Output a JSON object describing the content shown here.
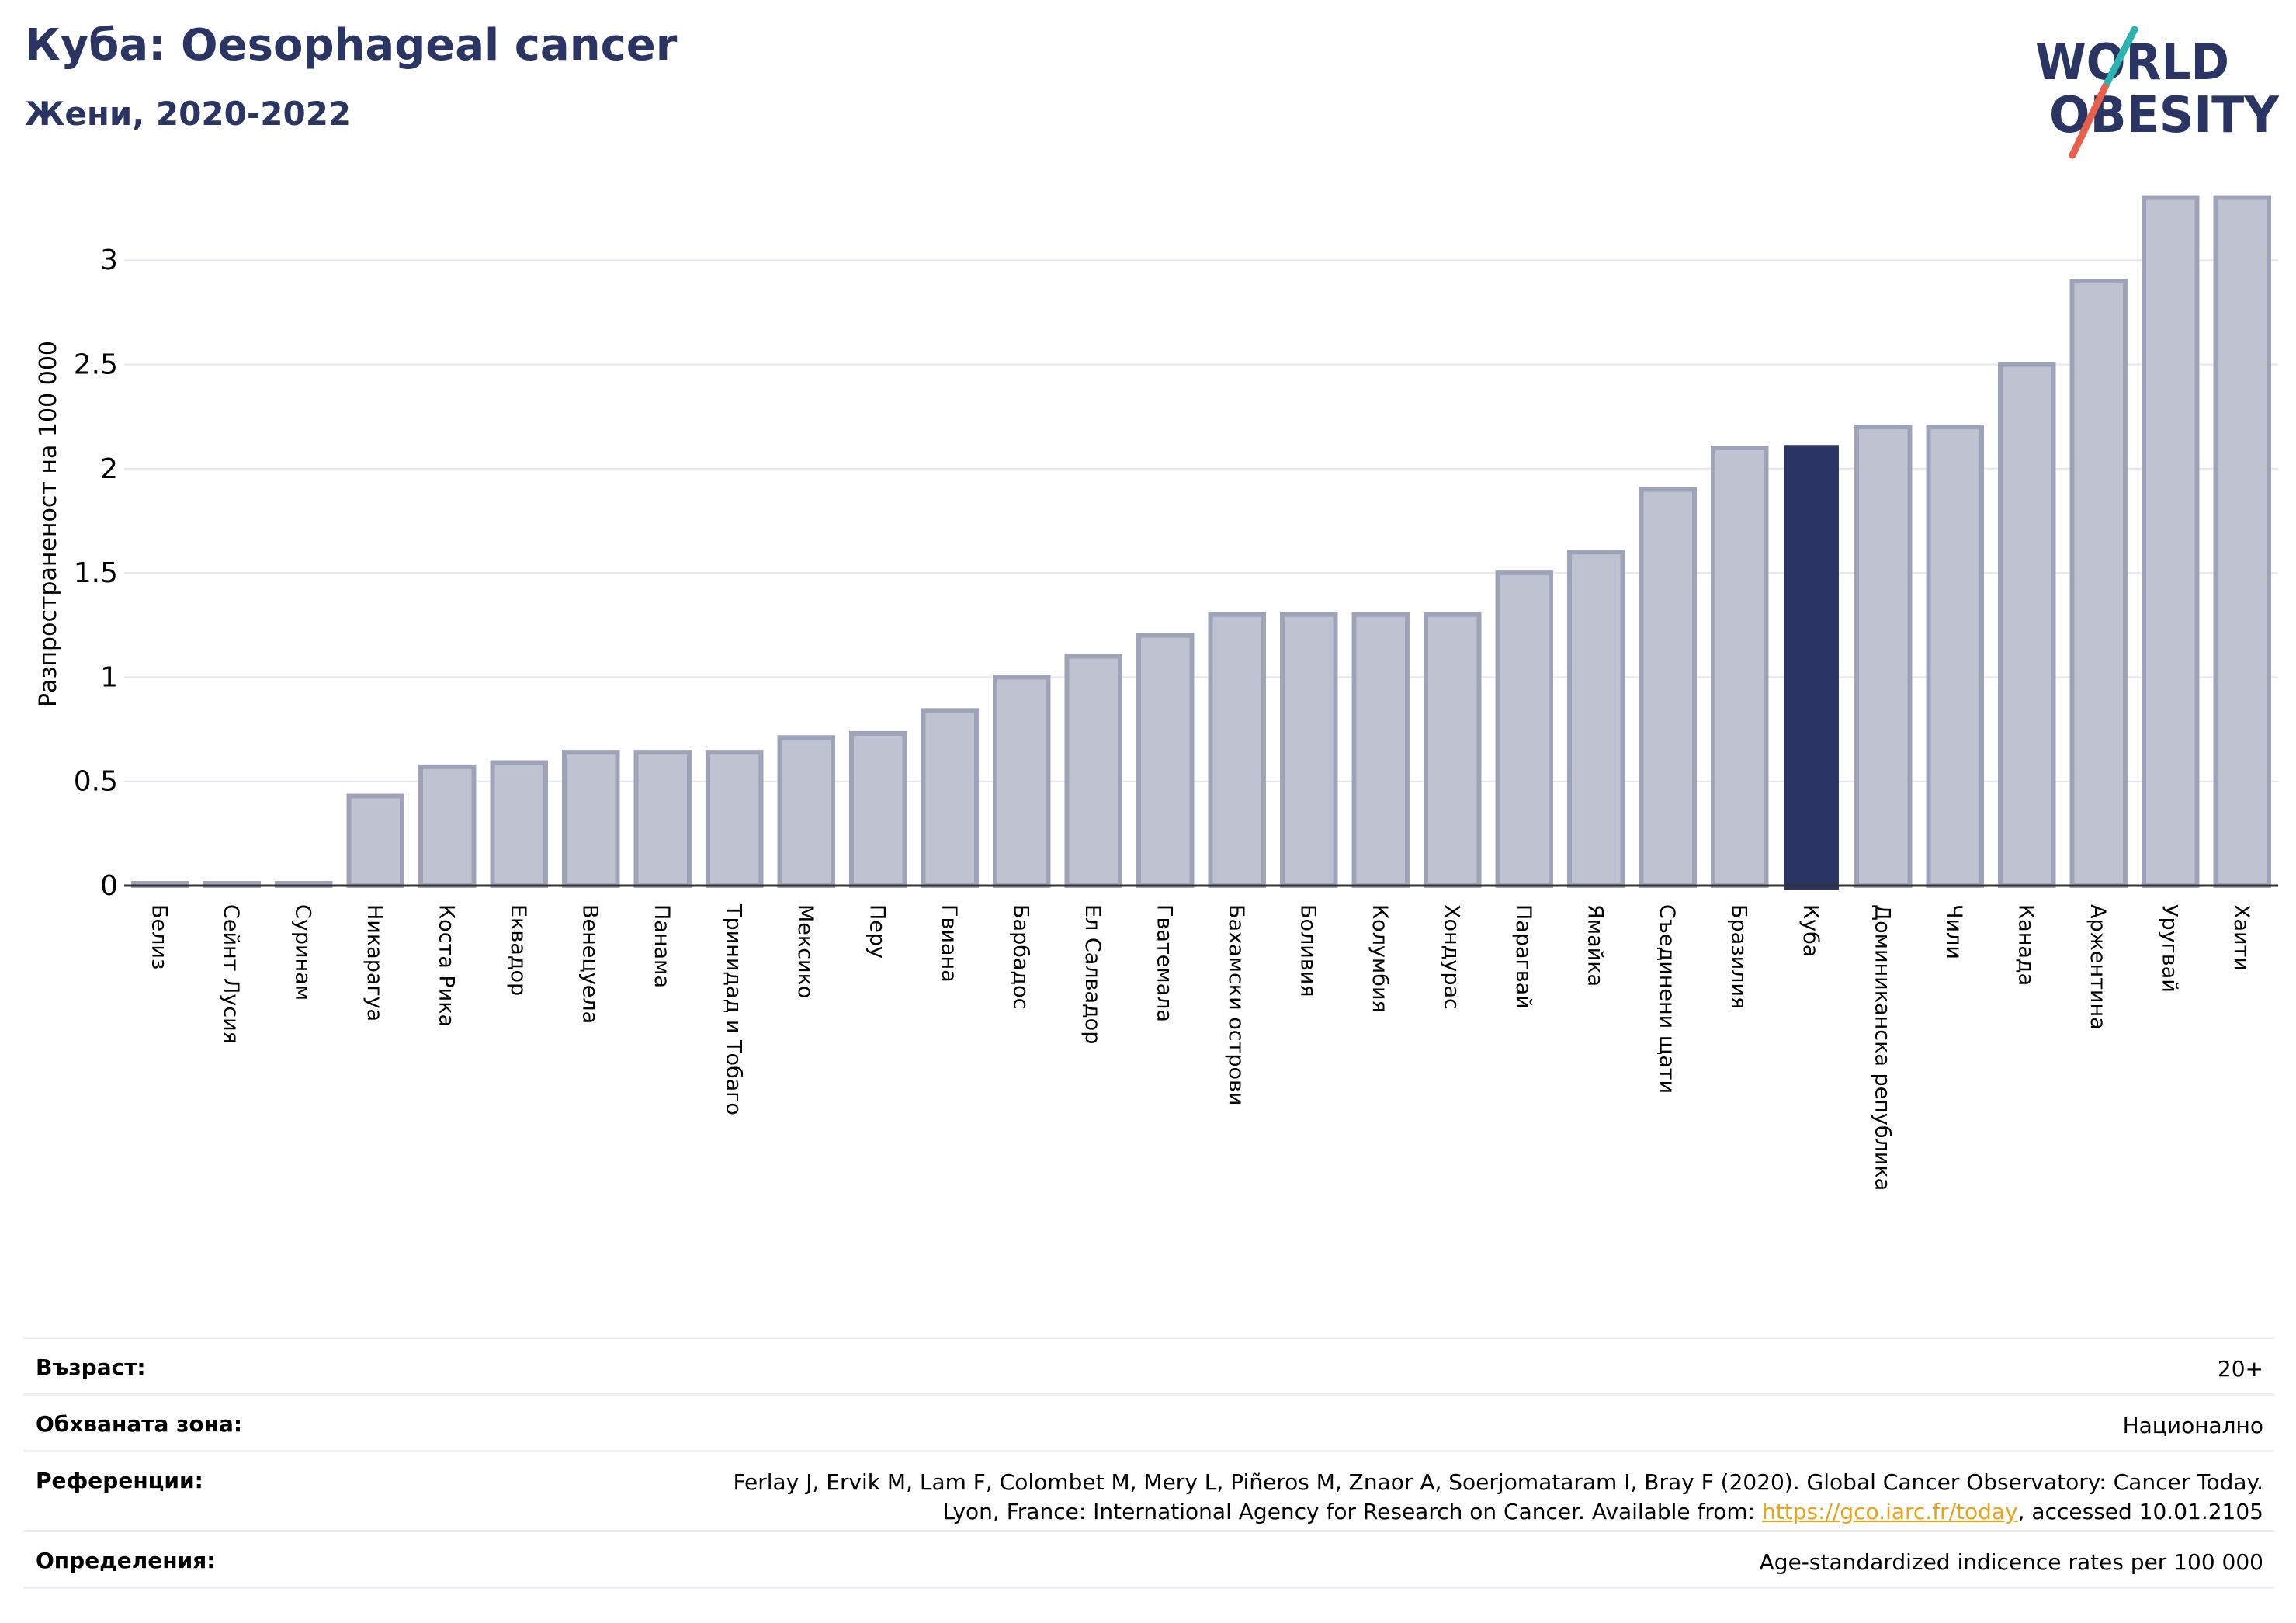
{
  "header": {
    "title": "Куба: Oesophageal cancer",
    "subtitle": "Жени, 2020-2022"
  },
  "logo": {
    "line1": "WORLD",
    "line2": "OBESITY",
    "colors": {
      "text": "#2b3563",
      "slash_top": "#2ab3b1",
      "slash_bottom": "#e8604c"
    }
  },
  "colors": {
    "bar": "#bfc2d0",
    "bar_edge": "#9ea3b8",
    "highlight": "#2b3563",
    "grid": "#e6e7ee",
    "axis": "#333333"
  },
  "chart_data": {
    "type": "bar",
    "ylabel": "Разпространеност  на 100 000",
    "ylim": [
      0,
      3.3
    ],
    "yticks": [
      0,
      0.5,
      1,
      1.5,
      2,
      2.5,
      3
    ],
    "ytick_labels": [
      "0",
      "0.5",
      "1",
      "1.5",
      "2",
      "2.5",
      "3"
    ],
    "grid": true,
    "highlight": "Куба",
    "categories": [
      "Белиз",
      "Сейнт Лусия",
      "Суринам",
      "Никарагуа",
      "Коста Рика",
      "Еквадор",
      "Венецуела",
      "Панама",
      "Тринидад и Тобаго",
      "Мексико",
      "Перу",
      "Гвиана",
      "Барбадос",
      "Ел Салвадор",
      "Гватемала",
      "Бахамски острови",
      "Боливия",
      "Колумбия",
      "Хондурас",
      "Парагвай",
      "Ямайка",
      "Съединени щати",
      "Бразилия",
      "Куба",
      "Доминиканска република",
      "Чили",
      "Канада",
      "Аржентина",
      "Уругвай",
      "Хаити"
    ],
    "values": [
      0.01,
      0.01,
      0.01,
      0.43,
      0.57,
      0.59,
      0.64,
      0.64,
      0.64,
      0.71,
      0.73,
      0.84,
      1.0,
      1.1,
      1.2,
      1.3,
      1.3,
      1.3,
      1.3,
      1.5,
      1.6,
      1.9,
      2.1,
      2.11,
      2.2,
      2.2,
      2.5,
      2.9,
      3.3,
      3.3
    ]
  },
  "meta": [
    {
      "label": "Възраст:",
      "value": "20+"
    },
    {
      "label": "Обхваната зона:",
      "value": "Национално"
    },
    {
      "label": "Референции:",
      "value_line1": "Ferlay J, Ervik M, Lam F, Colombet M, Mery L, Piñeros M, Znaor A, Soerjomataram I, Bray F (2020). Global Cancer Observatory: Cancer Today.",
      "value_line2_prefix": "Lyon, France: International Agency for Research on Cancer. Available from: ",
      "link": "https://gco.iarc.fr/today",
      "value_line2_suffix": ", accessed 10.01.2105"
    },
    {
      "label": "Определения:",
      "value": "Age-standardized indicence rates per 100 000"
    }
  ]
}
